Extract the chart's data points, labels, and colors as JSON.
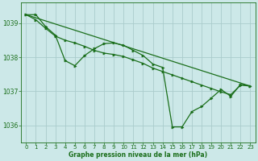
{
  "background_color": "#cce8e8",
  "grid_color": "#aacccc",
  "line_color": "#1a6e1a",
  "marker_color": "#1a6e1a",
  "xlabel": "Graphe pression niveau de la mer (hPa)",
  "xlim": [
    -0.5,
    23.5
  ],
  "ylim": [
    1035.5,
    1039.6
  ],
  "yticks": [
    1036,
    1037,
    1038,
    1039
  ],
  "xticks": [
    0,
    1,
    2,
    3,
    4,
    5,
    6,
    7,
    8,
    9,
    10,
    11,
    12,
    13,
    14,
    15,
    16,
    17,
    18,
    19,
    20,
    21,
    22,
    23
  ],
  "series1_x": [
    0,
    1,
    2,
    3,
    4,
    5,
    6,
    7,
    8,
    9,
    10,
    11,
    12,
    13,
    14,
    15,
    16,
    17,
    18,
    19,
    20,
    21,
    22,
    23
  ],
  "series1_y": [
    1039.25,
    1039.25,
    1038.9,
    1038.65,
    1037.9,
    1037.75,
    1038.05,
    1038.25,
    1038.4,
    1038.42,
    1038.35,
    1038.2,
    1038.05,
    1037.8,
    1037.7,
    1035.95,
    1035.95,
    1036.4,
    1036.55,
    1036.8,
    1037.05,
    1036.85,
    1037.2,
    1037.15
  ],
  "series2_x": [
    0,
    1,
    2,
    3,
    4,
    5,
    6,
    7,
    8,
    9,
    10,
    11,
    12,
    13,
    14,
    15,
    16,
    17,
    18,
    19,
    20,
    21,
    22,
    23
  ],
  "series2_y": [
    1039.25,
    1039.1,
    1038.85,
    1038.62,
    1038.5,
    1038.42,
    1038.32,
    1038.2,
    1038.12,
    1038.08,
    1038.02,
    1037.92,
    1037.82,
    1037.68,
    1037.58,
    1037.48,
    1037.38,
    1037.28,
    1037.18,
    1037.08,
    1036.98,
    1036.9,
    1037.18,
    1037.15
  ],
  "series3_x": [
    0,
    23
  ],
  "series3_y": [
    1039.25,
    1037.15
  ],
  "tick_fontsize": 5,
  "xlabel_fontsize": 5.5,
  "ylabel_fontsize": 5.5,
  "tick_color": "#1a6e1a",
  "spine_color": "#1a6e1a"
}
